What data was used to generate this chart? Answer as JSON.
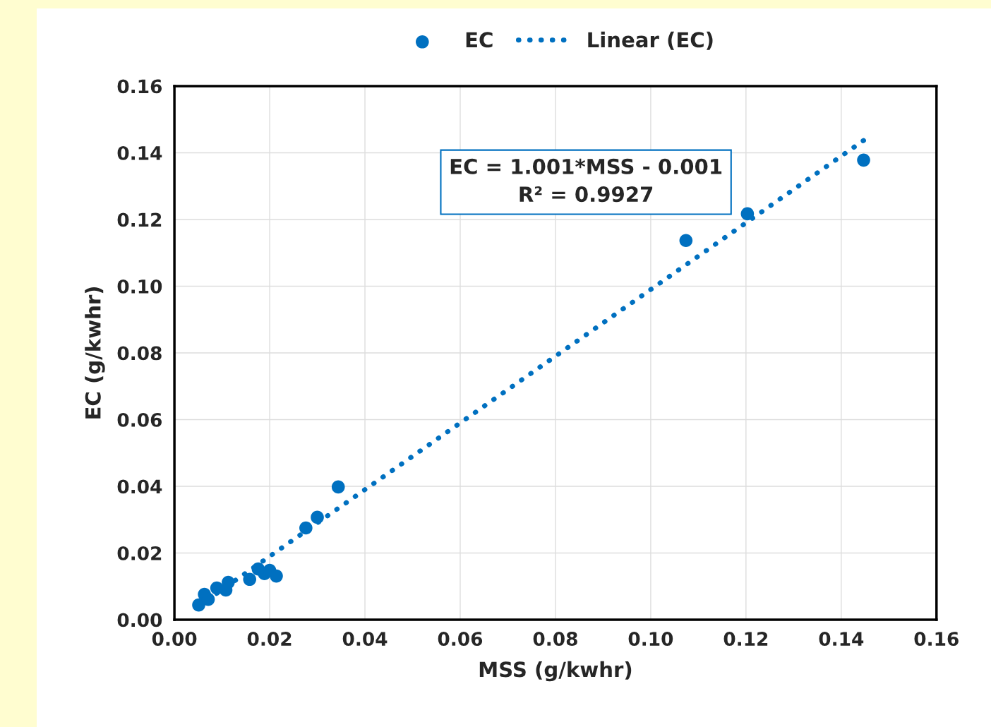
{
  "chart_data": {
    "type": "scatter",
    "xlabel": "MSS (g/kwhr)",
    "ylabel": "EC (g/kwhr)",
    "series": [
      {
        "name": "EC",
        "color": "#0070c0",
        "marker": "circle",
        "x": [
          0.0051,
          0.0063,
          0.0071,
          0.0089,
          0.0108,
          0.0113,
          0.0158,
          0.0176,
          0.0189,
          0.02,
          0.0214,
          0.0276,
          0.03,
          0.0344,
          0.1074,
          0.1203,
          0.1447
        ],
        "values": [
          0.0044,
          0.0076,
          0.0061,
          0.0095,
          0.0089,
          0.0112,
          0.0121,
          0.0152,
          0.0138,
          0.0148,
          0.0131,
          0.0275,
          0.0307,
          0.0398,
          0.1137,
          0.1217,
          0.1378
        ]
      },
      {
        "name": "Linear (EC)",
        "type": "line",
        "color": "#0070c0",
        "line_style": "dotted",
        "x": [
          0.005,
          0.145
        ],
        "values": [
          0.004,
          0.144
        ]
      }
    ],
    "annotations": [
      "EC = 1.001*MSS - 0.001\nR² = 0.9927"
    ],
    "xlim": [
      0,
      0.16
    ],
    "xticks": [
      {
        "value": 0,
        "label": "0.00"
      },
      {
        "value": 0.02,
        "label": "0.02"
      },
      {
        "value": 0.04,
        "label": "0.04"
      },
      {
        "value": 0.06,
        "label": "0.06"
      },
      {
        "value": 0.08,
        "label": "0.08"
      },
      {
        "value": 0.1,
        "label": "0.10"
      },
      {
        "value": 0.12,
        "label": "0.12"
      },
      {
        "value": 0.14,
        "label": "0.14"
      },
      {
        "value": 0.16,
        "label": "0.16"
      }
    ],
    "ylim": [
      0,
      0.16
    ],
    "yticks": [
      {
        "value": 0,
        "label": "0.00"
      },
      {
        "value": 0.02,
        "label": "0.02"
      },
      {
        "value": 0.04,
        "label": "0.04"
      },
      {
        "value": 0.06,
        "label": "0.06"
      },
      {
        "value": 0.08,
        "label": "0.08"
      },
      {
        "value": 0.1,
        "label": "0.10"
      },
      {
        "value": 0.12,
        "label": "0.12"
      },
      {
        "value": 0.14,
        "label": "0.14"
      },
      {
        "value": 0.16,
        "label": "0.16"
      }
    ],
    "grid": true,
    "legend": "top"
  }
}
